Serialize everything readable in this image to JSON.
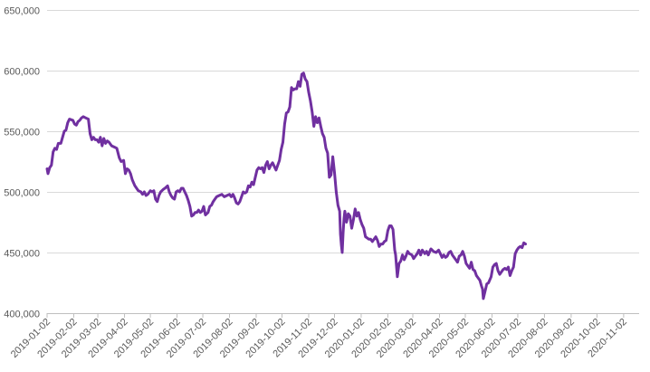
{
  "chart_data": {
    "type": "line",
    "title": "",
    "xlabel": "",
    "ylabel": "",
    "ylim": [
      400000,
      650000
    ],
    "y_ticks": [
      400000,
      450000,
      500000,
      550000,
      600000,
      650000
    ],
    "y_tick_labels": [
      "400,000",
      "450,000",
      "500,000",
      "550,000",
      "600,000",
      "650,000"
    ],
    "x_tick_labels": [
      "2019-01-02",
      "2019-02-02",
      "2019-03-02",
      "2019-04-02",
      "2019-05-02",
      "2019-06-02",
      "2019-07-02",
      "2019-08-02",
      "2019-09-02",
      "2019-10-02",
      "2019-11-02",
      "2019-12-02",
      "2020-01-02",
      "2020-02-02",
      "2020-03-02",
      "2020-04-02",
      "2020-05-02",
      "2020-06-02",
      "2020-07-02",
      "2020-08-02",
      "2020-09-02",
      "2020-10-02",
      "2020-11-02"
    ],
    "grid": true,
    "line_color": "#7030a0",
    "series": [
      {
        "points": [
          [
            "2019-01-02",
            519000
          ],
          [
            "2019-01-03",
            515000
          ],
          [
            "2019-01-05",
            520000
          ],
          [
            "2019-01-07",
            522000
          ],
          [
            "2019-01-09",
            533000
          ],
          [
            "2019-01-11",
            536000
          ],
          [
            "2019-01-13",
            535000
          ],
          [
            "2019-01-15",
            540000
          ],
          [
            "2019-01-18",
            540000
          ],
          [
            "2019-01-20",
            545000
          ],
          [
            "2019-01-22",
            550000
          ],
          [
            "2019-01-24",
            551000
          ],
          [
            "2019-01-26",
            557000
          ],
          [
            "2019-01-28",
            560000
          ],
          [
            "2019-02-01",
            559000
          ],
          [
            "2019-02-03",
            556000
          ],
          [
            "2019-02-05",
            555000
          ],
          [
            "2019-02-07",
            558000
          ],
          [
            "2019-02-09",
            559000
          ],
          [
            "2019-02-11",
            561000
          ],
          [
            "2019-02-13",
            562000
          ],
          [
            "2019-02-16",
            561000
          ],
          [
            "2019-02-19",
            560000
          ],
          [
            "2019-02-21",
            548000
          ],
          [
            "2019-02-23",
            543000
          ],
          [
            "2019-02-25",
            545000
          ],
          [
            "2019-02-27",
            543000
          ],
          [
            "2019-03-01",
            543000
          ],
          [
            "2019-03-03",
            541000
          ],
          [
            "2019-03-05",
            545000
          ],
          [
            "2019-03-07",
            538000
          ],
          [
            "2019-03-09",
            544000
          ],
          [
            "2019-03-11",
            540000
          ],
          [
            "2019-03-13",
            542000
          ],
          [
            "2019-03-15",
            541000
          ],
          [
            "2019-03-18",
            538000
          ],
          [
            "2019-03-21",
            537000
          ],
          [
            "2019-03-24",
            536000
          ],
          [
            "2019-03-27",
            528000
          ],
          [
            "2019-03-29",
            525000
          ],
          [
            "2019-04-01",
            526000
          ],
          [
            "2019-04-03",
            515000
          ],
          [
            "2019-04-05",
            519000
          ],
          [
            "2019-04-07",
            518000
          ],
          [
            "2019-04-09",
            515000
          ],
          [
            "2019-04-11",
            510000
          ],
          [
            "2019-04-14",
            505000
          ],
          [
            "2019-04-16",
            503000
          ],
          [
            "2019-04-18",
            501000
          ],
          [
            "2019-04-21",
            500000
          ],
          [
            "2019-04-23",
            498000
          ],
          [
            "2019-04-25",
            500000
          ],
          [
            "2019-04-27",
            497000
          ],
          [
            "2019-04-29",
            498000
          ],
          [
            "2019-05-02",
            501000
          ],
          [
            "2019-05-04",
            500000
          ],
          [
            "2019-05-06",
            501000
          ],
          [
            "2019-05-08",
            494000
          ],
          [
            "2019-05-10",
            492000
          ],
          [
            "2019-05-12",
            497000
          ],
          [
            "2019-05-14",
            500000
          ],
          [
            "2019-05-17",
            502000
          ],
          [
            "2019-05-19",
            503000
          ],
          [
            "2019-05-22",
            505000
          ],
          [
            "2019-05-24",
            500000
          ],
          [
            "2019-05-26",
            497000
          ],
          [
            "2019-05-28",
            495000
          ],
          [
            "2019-05-30",
            494000
          ],
          [
            "2019-06-01",
            500000
          ],
          [
            "2019-06-03",
            501000
          ],
          [
            "2019-06-05",
            500000
          ],
          [
            "2019-06-07",
            503000
          ],
          [
            "2019-06-09",
            503000
          ],
          [
            "2019-06-11",
            500000
          ],
          [
            "2019-06-13",
            497000
          ],
          [
            "2019-06-15",
            493000
          ],
          [
            "2019-06-17",
            488000
          ],
          [
            "2019-06-19",
            480000
          ],
          [
            "2019-06-21",
            481000
          ],
          [
            "2019-06-23",
            483000
          ],
          [
            "2019-06-25",
            483000
          ],
          [
            "2019-06-27",
            485000
          ],
          [
            "2019-06-29",
            483000
          ],
          [
            "2019-07-01",
            484000
          ],
          [
            "2019-07-03",
            488000
          ],
          [
            "2019-07-05",
            481000
          ],
          [
            "2019-07-08",
            483000
          ],
          [
            "2019-07-10",
            488000
          ],
          [
            "2019-07-12",
            489000
          ],
          [
            "2019-07-14",
            492000
          ],
          [
            "2019-07-16",
            494000
          ],
          [
            "2019-07-18",
            496000
          ],
          [
            "2019-07-21",
            497000
          ],
          [
            "2019-07-24",
            498000
          ],
          [
            "2019-07-27",
            496000
          ],
          [
            "2019-07-30",
            497000
          ],
          [
            "2019-08-02",
            498000
          ],
          [
            "2019-08-04",
            496000
          ],
          [
            "2019-08-06",
            498000
          ],
          [
            "2019-08-08",
            495000
          ],
          [
            "2019-08-10",
            491000
          ],
          [
            "2019-08-12",
            490000
          ],
          [
            "2019-08-14",
            492000
          ],
          [
            "2019-08-16",
            496000
          ],
          [
            "2019-08-18",
            500000
          ],
          [
            "2019-08-20",
            499000
          ],
          [
            "2019-08-22",
            500000
          ],
          [
            "2019-08-24",
            505000
          ],
          [
            "2019-08-26",
            504000
          ],
          [
            "2019-08-28",
            508000
          ],
          [
            "2019-08-30",
            506000
          ],
          [
            "2019-09-01",
            512000
          ],
          [
            "2019-09-03",
            518000
          ],
          [
            "2019-09-05",
            520000
          ],
          [
            "2019-09-07",
            519000
          ],
          [
            "2019-09-09",
            520000
          ],
          [
            "2019-09-11",
            516000
          ],
          [
            "2019-09-13",
            522000
          ],
          [
            "2019-09-15",
            525000
          ],
          [
            "2019-09-17",
            519000
          ],
          [
            "2019-09-19",
            522000
          ],
          [
            "2019-09-21",
            524000
          ],
          [
            "2019-09-23",
            521000
          ],
          [
            "2019-09-25",
            518000
          ],
          [
            "2019-09-27",
            522000
          ],
          [
            "2019-09-29",
            526000
          ],
          [
            "2019-10-01",
            535000
          ],
          [
            "2019-10-03",
            541000
          ],
          [
            "2019-10-05",
            556000
          ],
          [
            "2019-10-07",
            565000
          ],
          [
            "2019-10-09",
            566000
          ],
          [
            "2019-10-11",
            570000
          ],
          [
            "2019-10-13",
            586000
          ],
          [
            "2019-10-15",
            584000
          ],
          [
            "2019-10-17",
            585000
          ],
          [
            "2019-10-19",
            585000
          ],
          [
            "2019-10-21",
            591000
          ],
          [
            "2019-10-23",
            587000
          ],
          [
            "2019-10-25",
            597000
          ],
          [
            "2019-10-27",
            598000
          ],
          [
            "2019-10-29",
            593000
          ],
          [
            "2019-10-31",
            591000
          ],
          [
            "2019-11-02",
            582000
          ],
          [
            "2019-11-04",
            575000
          ],
          [
            "2019-11-06",
            566000
          ],
          [
            "2019-11-08",
            554000
          ],
          [
            "2019-11-10",
            562000
          ],
          [
            "2019-11-12",
            557000
          ],
          [
            "2019-11-14",
            561000
          ],
          [
            "2019-11-16",
            554000
          ],
          [
            "2019-11-18",
            548000
          ],
          [
            "2019-11-20",
            545000
          ],
          [
            "2019-11-22",
            536000
          ],
          [
            "2019-11-24",
            532000
          ],
          [
            "2019-11-26",
            512000
          ],
          [
            "2019-11-28",
            514000
          ],
          [
            "2019-11-30",
            529000
          ],
          [
            "2019-12-02",
            516000
          ],
          [
            "2019-12-04",
            500000
          ],
          [
            "2019-12-06",
            489000
          ],
          [
            "2019-12-08",
            484000
          ],
          [
            "2019-12-09",
            465000
          ],
          [
            "2019-12-10",
            456000
          ],
          [
            "2019-12-11",
            450000
          ],
          [
            "2019-12-12",
            466000
          ],
          [
            "2019-12-13",
            478000
          ],
          [
            "2019-12-14",
            484000
          ],
          [
            "2019-12-16",
            475000
          ],
          [
            "2019-12-18",
            482000
          ],
          [
            "2019-12-20",
            480000
          ],
          [
            "2019-12-22",
            470000
          ],
          [
            "2019-12-24",
            477000
          ],
          [
            "2019-12-26",
            486000
          ],
          [
            "2019-12-28",
            480000
          ],
          [
            "2019-12-30",
            483000
          ],
          [
            "2020-01-01",
            477000
          ],
          [
            "2020-01-03",
            473000
          ],
          [
            "2020-01-05",
            470000
          ],
          [
            "2020-01-07",
            463000
          ],
          [
            "2020-01-09",
            462000
          ],
          [
            "2020-01-11",
            461000
          ],
          [
            "2020-01-13",
            461000
          ],
          [
            "2020-01-15",
            459000
          ],
          [
            "2020-01-17",
            461000
          ],
          [
            "2020-01-19",
            463000
          ],
          [
            "2020-01-21",
            460000
          ],
          [
            "2020-01-23",
            455000
          ],
          [
            "2020-01-25",
            457000
          ],
          [
            "2020-01-27",
            457000
          ],
          [
            "2020-01-29",
            459000
          ],
          [
            "2020-01-31",
            460000
          ],
          [
            "2020-02-02",
            468000
          ],
          [
            "2020-02-04",
            472000
          ],
          [
            "2020-02-06",
            472000
          ],
          [
            "2020-02-08",
            469000
          ],
          [
            "2020-02-10",
            452000
          ],
          [
            "2020-02-11",
            448000
          ],
          [
            "2020-02-13",
            430000
          ],
          [
            "2020-02-15",
            441000
          ],
          [
            "2020-02-17",
            443000
          ],
          [
            "2020-02-19",
            448000
          ],
          [
            "2020-02-21",
            444000
          ],
          [
            "2020-02-23",
            447000
          ],
          [
            "2020-02-25",
            451000
          ],
          [
            "2020-02-27",
            449000
          ],
          [
            "2020-03-01",
            448000
          ],
          [
            "2020-03-03",
            445000
          ],
          [
            "2020-03-05",
            447000
          ],
          [
            "2020-03-07",
            449000
          ],
          [
            "2020-03-09",
            452000
          ],
          [
            "2020-03-11",
            448000
          ],
          [
            "2020-03-13",
            452000
          ],
          [
            "2020-03-16",
            449000
          ],
          [
            "2020-03-18",
            451000
          ],
          [
            "2020-03-20",
            448000
          ],
          [
            "2020-03-23",
            453000
          ],
          [
            "2020-03-26",
            451000
          ],
          [
            "2020-03-29",
            450000
          ],
          [
            "2020-04-01",
            452000
          ],
          [
            "2020-04-03",
            449000
          ],
          [
            "2020-04-05",
            446000
          ],
          [
            "2020-04-07",
            448000
          ],
          [
            "2020-04-09",
            446000
          ],
          [
            "2020-04-11",
            447000
          ],
          [
            "2020-04-13",
            450000
          ],
          [
            "2020-04-15",
            451000
          ],
          [
            "2020-04-17",
            448000
          ],
          [
            "2020-04-19",
            446000
          ],
          [
            "2020-04-21",
            444000
          ],
          [
            "2020-04-23",
            442000
          ],
          [
            "2020-04-25",
            447000
          ],
          [
            "2020-04-27",
            448000
          ],
          [
            "2020-04-29",
            451000
          ],
          [
            "2020-05-01",
            447000
          ],
          [
            "2020-05-03",
            441000
          ],
          [
            "2020-05-05",
            439000
          ],
          [
            "2020-05-07",
            437000
          ],
          [
            "2020-05-09",
            442000
          ],
          [
            "2020-05-11",
            436000
          ],
          [
            "2020-05-13",
            435000
          ],
          [
            "2020-05-15",
            431000
          ],
          [
            "2020-05-17",
            429000
          ],
          [
            "2020-05-19",
            427000
          ],
          [
            "2020-05-21",
            422000
          ],
          [
            "2020-05-22",
            420000
          ],
          [
            "2020-05-23",
            412000
          ],
          [
            "2020-05-25",
            418000
          ],
          [
            "2020-05-27",
            424000
          ],
          [
            "2020-05-29",
            425000
          ],
          [
            "2020-06-01",
            430000
          ],
          [
            "2020-06-03",
            438000
          ],
          [
            "2020-06-05",
            440000
          ],
          [
            "2020-06-07",
            441000
          ],
          [
            "2020-06-09",
            435000
          ],
          [
            "2020-06-11",
            432000
          ],
          [
            "2020-06-13",
            434000
          ],
          [
            "2020-06-15",
            436000
          ],
          [
            "2020-06-17",
            437000
          ],
          [
            "2020-06-19",
            436000
          ],
          [
            "2020-06-21",
            438000
          ],
          [
            "2020-06-23",
            431000
          ],
          [
            "2020-06-25",
            435000
          ],
          [
            "2020-06-27",
            438000
          ],
          [
            "2020-06-29",
            449000
          ],
          [
            "2020-07-01",
            452000
          ],
          [
            "2020-07-03",
            454000
          ],
          [
            "2020-07-05",
            455000
          ],
          [
            "2020-07-07",
            454000
          ],
          [
            "2020-07-09",
            458000
          ],
          [
            "2020-07-11",
            457000
          ]
        ]
      }
    ]
  }
}
